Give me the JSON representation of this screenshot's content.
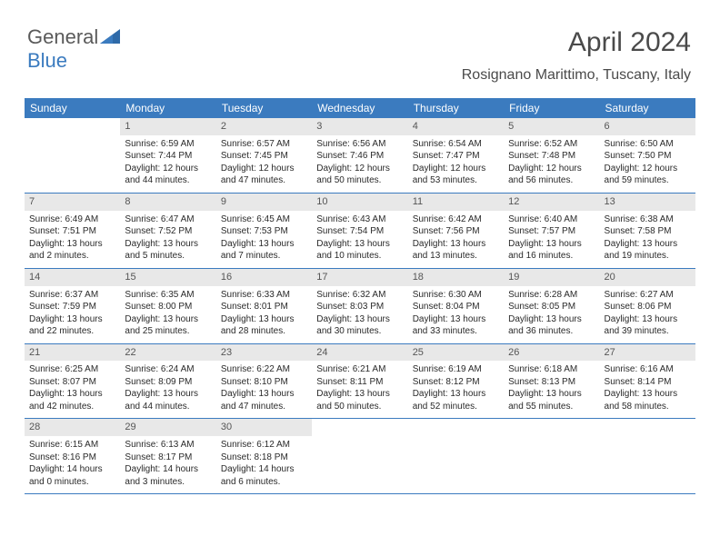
{
  "logo": {
    "part1": "General",
    "part2": "Blue"
  },
  "header": {
    "month": "April 2024",
    "location": "Rosignano Marittimo, Tuscany, Italy"
  },
  "colors": {
    "accent": "#3b7bbf",
    "header_bg": "#3b7bbf",
    "daynum_bg": "#e8e8e8",
    "text": "#2a2a2a"
  },
  "weekdays": [
    "Sunday",
    "Monday",
    "Tuesday",
    "Wednesday",
    "Thursday",
    "Friday",
    "Saturday"
  ],
  "weeks": [
    [
      {
        "n": "",
        "sr": "",
        "ss": "",
        "dl": ""
      },
      {
        "n": "1",
        "sr": "Sunrise: 6:59 AM",
        "ss": "Sunset: 7:44 PM",
        "dl": "Daylight: 12 hours and 44 minutes."
      },
      {
        "n": "2",
        "sr": "Sunrise: 6:57 AM",
        "ss": "Sunset: 7:45 PM",
        "dl": "Daylight: 12 hours and 47 minutes."
      },
      {
        "n": "3",
        "sr": "Sunrise: 6:56 AM",
        "ss": "Sunset: 7:46 PM",
        "dl": "Daylight: 12 hours and 50 minutes."
      },
      {
        "n": "4",
        "sr": "Sunrise: 6:54 AM",
        "ss": "Sunset: 7:47 PM",
        "dl": "Daylight: 12 hours and 53 minutes."
      },
      {
        "n": "5",
        "sr": "Sunrise: 6:52 AM",
        "ss": "Sunset: 7:48 PM",
        "dl": "Daylight: 12 hours and 56 minutes."
      },
      {
        "n": "6",
        "sr": "Sunrise: 6:50 AM",
        "ss": "Sunset: 7:50 PM",
        "dl": "Daylight: 12 hours and 59 minutes."
      }
    ],
    [
      {
        "n": "7",
        "sr": "Sunrise: 6:49 AM",
        "ss": "Sunset: 7:51 PM",
        "dl": "Daylight: 13 hours and 2 minutes."
      },
      {
        "n": "8",
        "sr": "Sunrise: 6:47 AM",
        "ss": "Sunset: 7:52 PM",
        "dl": "Daylight: 13 hours and 5 minutes."
      },
      {
        "n": "9",
        "sr": "Sunrise: 6:45 AM",
        "ss": "Sunset: 7:53 PM",
        "dl": "Daylight: 13 hours and 7 minutes."
      },
      {
        "n": "10",
        "sr": "Sunrise: 6:43 AM",
        "ss": "Sunset: 7:54 PM",
        "dl": "Daylight: 13 hours and 10 minutes."
      },
      {
        "n": "11",
        "sr": "Sunrise: 6:42 AM",
        "ss": "Sunset: 7:56 PM",
        "dl": "Daylight: 13 hours and 13 minutes."
      },
      {
        "n": "12",
        "sr": "Sunrise: 6:40 AM",
        "ss": "Sunset: 7:57 PM",
        "dl": "Daylight: 13 hours and 16 minutes."
      },
      {
        "n": "13",
        "sr": "Sunrise: 6:38 AM",
        "ss": "Sunset: 7:58 PM",
        "dl": "Daylight: 13 hours and 19 minutes."
      }
    ],
    [
      {
        "n": "14",
        "sr": "Sunrise: 6:37 AM",
        "ss": "Sunset: 7:59 PM",
        "dl": "Daylight: 13 hours and 22 minutes."
      },
      {
        "n": "15",
        "sr": "Sunrise: 6:35 AM",
        "ss": "Sunset: 8:00 PM",
        "dl": "Daylight: 13 hours and 25 minutes."
      },
      {
        "n": "16",
        "sr": "Sunrise: 6:33 AM",
        "ss": "Sunset: 8:01 PM",
        "dl": "Daylight: 13 hours and 28 minutes."
      },
      {
        "n": "17",
        "sr": "Sunrise: 6:32 AM",
        "ss": "Sunset: 8:03 PM",
        "dl": "Daylight: 13 hours and 30 minutes."
      },
      {
        "n": "18",
        "sr": "Sunrise: 6:30 AM",
        "ss": "Sunset: 8:04 PM",
        "dl": "Daylight: 13 hours and 33 minutes."
      },
      {
        "n": "19",
        "sr": "Sunrise: 6:28 AM",
        "ss": "Sunset: 8:05 PM",
        "dl": "Daylight: 13 hours and 36 minutes."
      },
      {
        "n": "20",
        "sr": "Sunrise: 6:27 AM",
        "ss": "Sunset: 8:06 PM",
        "dl": "Daylight: 13 hours and 39 minutes."
      }
    ],
    [
      {
        "n": "21",
        "sr": "Sunrise: 6:25 AM",
        "ss": "Sunset: 8:07 PM",
        "dl": "Daylight: 13 hours and 42 minutes."
      },
      {
        "n": "22",
        "sr": "Sunrise: 6:24 AM",
        "ss": "Sunset: 8:09 PM",
        "dl": "Daylight: 13 hours and 44 minutes."
      },
      {
        "n": "23",
        "sr": "Sunrise: 6:22 AM",
        "ss": "Sunset: 8:10 PM",
        "dl": "Daylight: 13 hours and 47 minutes."
      },
      {
        "n": "24",
        "sr": "Sunrise: 6:21 AM",
        "ss": "Sunset: 8:11 PM",
        "dl": "Daylight: 13 hours and 50 minutes."
      },
      {
        "n": "25",
        "sr": "Sunrise: 6:19 AM",
        "ss": "Sunset: 8:12 PM",
        "dl": "Daylight: 13 hours and 52 minutes."
      },
      {
        "n": "26",
        "sr": "Sunrise: 6:18 AM",
        "ss": "Sunset: 8:13 PM",
        "dl": "Daylight: 13 hours and 55 minutes."
      },
      {
        "n": "27",
        "sr": "Sunrise: 6:16 AM",
        "ss": "Sunset: 8:14 PM",
        "dl": "Daylight: 13 hours and 58 minutes."
      }
    ],
    [
      {
        "n": "28",
        "sr": "Sunrise: 6:15 AM",
        "ss": "Sunset: 8:16 PM",
        "dl": "Daylight: 14 hours and 0 minutes."
      },
      {
        "n": "29",
        "sr": "Sunrise: 6:13 AM",
        "ss": "Sunset: 8:17 PM",
        "dl": "Daylight: 14 hours and 3 minutes."
      },
      {
        "n": "30",
        "sr": "Sunrise: 6:12 AM",
        "ss": "Sunset: 8:18 PM",
        "dl": "Daylight: 14 hours and 6 minutes."
      },
      {
        "n": "",
        "sr": "",
        "ss": "",
        "dl": ""
      },
      {
        "n": "",
        "sr": "",
        "ss": "",
        "dl": ""
      },
      {
        "n": "",
        "sr": "",
        "ss": "",
        "dl": ""
      },
      {
        "n": "",
        "sr": "",
        "ss": "",
        "dl": ""
      }
    ]
  ]
}
